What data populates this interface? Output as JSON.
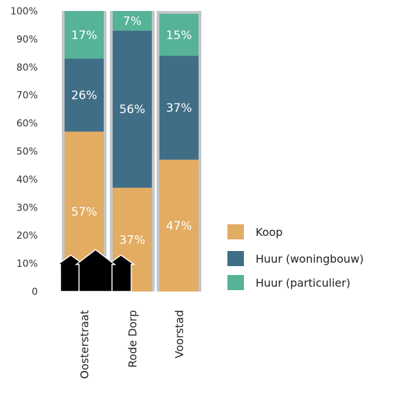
{
  "chart_data": {
    "type": "bar",
    "stacked": true,
    "percent": true,
    "categories": [
      "Oosterstraat",
      "Rode Dorp",
      "Voorstad"
    ],
    "series": [
      {
        "name": "Koop",
        "color": "#e2ac63",
        "values": [
          57,
          37,
          47
        ]
      },
      {
        "name": "Huur (woningbouw)",
        "color": "#406e87",
        "values": [
          26,
          56,
          37
        ]
      },
      {
        "name": "Huur (particulier)",
        "color": "#56b397",
        "values": [
          17,
          7,
          15
        ]
      }
    ],
    "yticks": [
      "0",
      "10%",
      "20%",
      "30%",
      "40%",
      "50%",
      "60%",
      "70%",
      "80%",
      "90%",
      "100%"
    ],
    "ylim": [
      0,
      100
    ],
    "legend_position": "right",
    "house_icons": [
      "house-icon-small",
      "house-icon-large",
      "house-icon-small"
    ]
  }
}
